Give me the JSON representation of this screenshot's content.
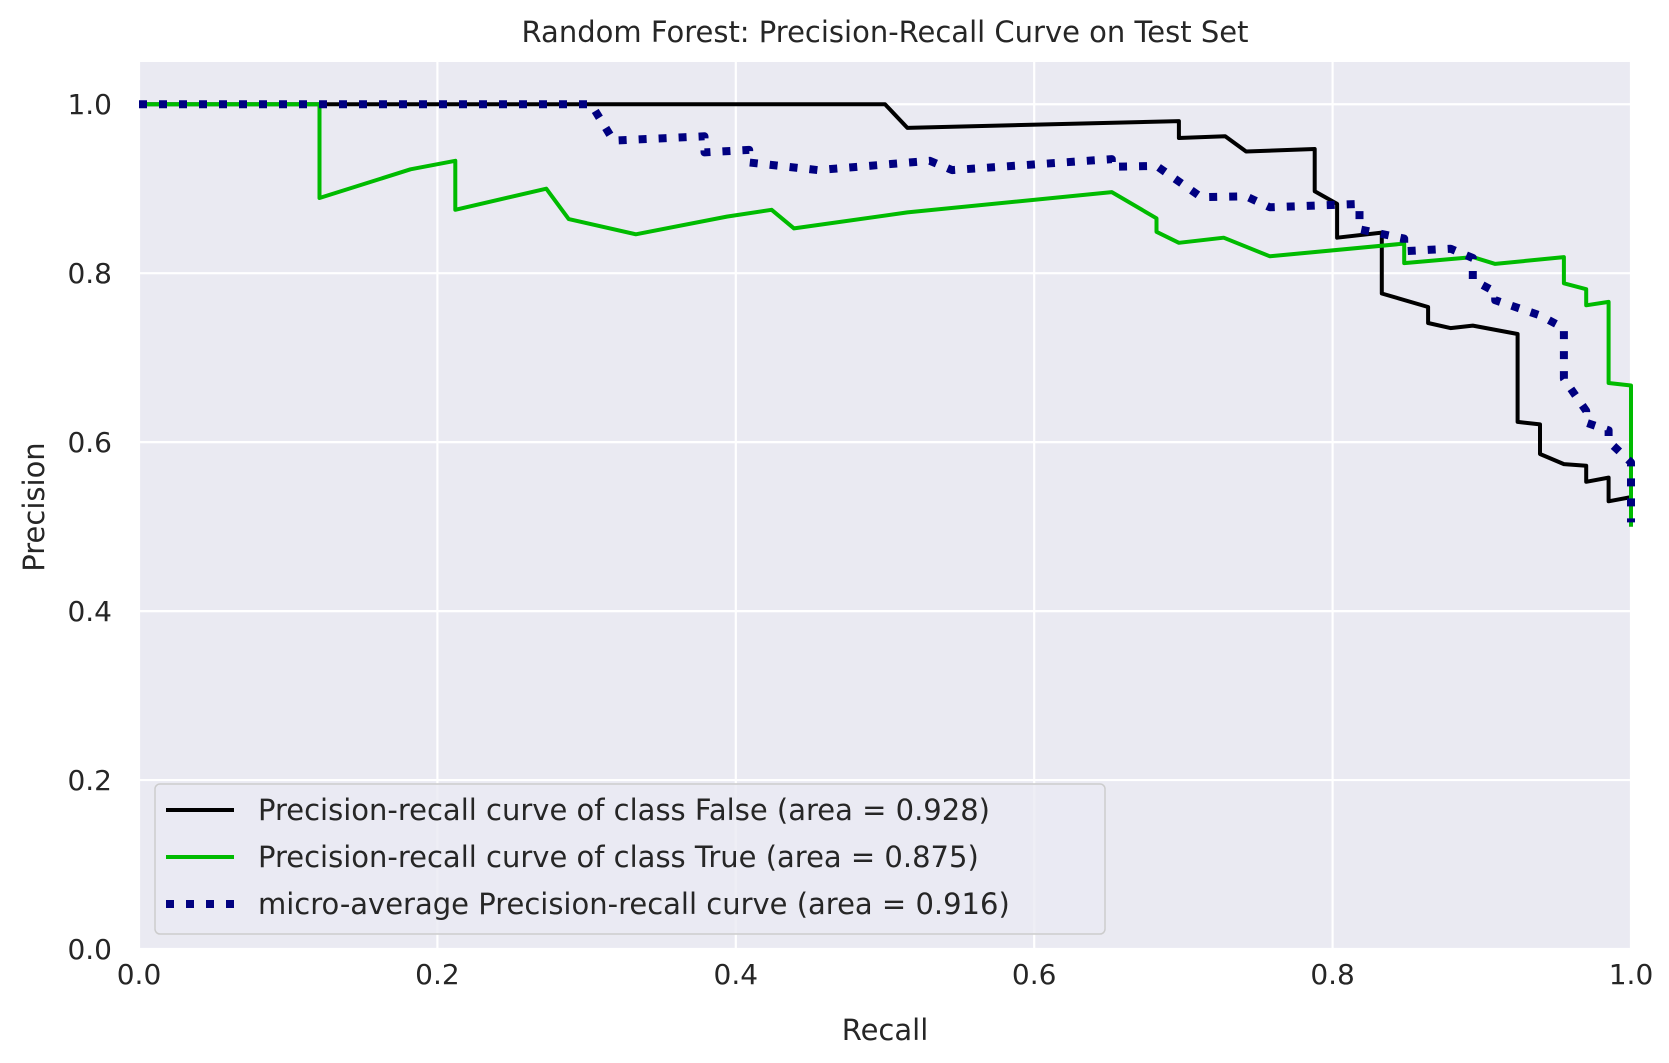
{
  "chart_data": {
    "type": "line",
    "title": "Random Forest: Precision-Recall Curve on Test Set",
    "xlabel": "Recall",
    "ylabel": "Precision",
    "xlim": [
      0.0,
      1.0
    ],
    "ylim": [
      0.0,
      1.05
    ],
    "xticks": [
      "0.0",
      "0.2",
      "0.4",
      "0.6",
      "0.8",
      "1.0"
    ],
    "yticks": [
      "0.0",
      "0.2",
      "0.4",
      "0.6",
      "0.8",
      "1.0"
    ],
    "grid": true,
    "legend_position": "lower-left",
    "colors": {
      "plot_background": "#eaeaf2",
      "grid": "#ffffff"
    },
    "series": [
      {
        "name": "Precision-recall curve of class False (area = 0.928)",
        "color": "#000000",
        "style": "solid",
        "points": [
          [
            0.0,
            1.0
          ],
          [
            0.5,
            1.0
          ],
          [
            0.515,
            0.972
          ],
          [
            0.697,
            0.98
          ],
          [
            0.697,
            0.96
          ],
          [
            0.728,
            0.962
          ],
          [
            0.742,
            0.944
          ],
          [
            0.788,
            0.947
          ],
          [
            0.788,
            0.897
          ],
          [
            0.803,
            0.882
          ],
          [
            0.803,
            0.842
          ],
          [
            0.833,
            0.848
          ],
          [
            0.833,
            0.776
          ],
          [
            0.864,
            0.76
          ],
          [
            0.864,
            0.741
          ],
          [
            0.879,
            0.735
          ],
          [
            0.894,
            0.738
          ],
          [
            0.924,
            0.728
          ],
          [
            0.924,
            0.624
          ],
          [
            0.939,
            0.621
          ],
          [
            0.939,
            0.586
          ],
          [
            0.955,
            0.574
          ],
          [
            0.97,
            0.572
          ],
          [
            0.97,
            0.553
          ],
          [
            0.985,
            0.558
          ],
          [
            0.985,
            0.53
          ],
          [
            1.0,
            0.535
          ],
          [
            1.0,
            0.5
          ]
        ]
      },
      {
        "name": "Precision-recall curve of class True (area = 0.875)",
        "color": "#00bb00",
        "style": "solid",
        "points": [
          [
            0.0,
            1.0
          ],
          [
            0.121,
            1.0
          ],
          [
            0.121,
            0.889
          ],
          [
            0.182,
            0.923
          ],
          [
            0.212,
            0.933
          ],
          [
            0.212,
            0.875
          ],
          [
            0.273,
            0.9
          ],
          [
            0.288,
            0.864
          ],
          [
            0.333,
            0.846
          ],
          [
            0.394,
            0.867
          ],
          [
            0.424,
            0.875
          ],
          [
            0.439,
            0.853
          ],
          [
            0.515,
            0.872
          ],
          [
            0.652,
            0.896
          ],
          [
            0.682,
            0.865
          ],
          [
            0.682,
            0.849
          ],
          [
            0.697,
            0.836
          ],
          [
            0.727,
            0.842
          ],
          [
            0.758,
            0.82
          ],
          [
            0.848,
            0.835
          ],
          [
            0.848,
            0.812
          ],
          [
            0.894,
            0.819
          ],
          [
            0.909,
            0.811
          ],
          [
            0.955,
            0.819
          ],
          [
            0.955,
            0.788
          ],
          [
            0.97,
            0.781
          ],
          [
            0.97,
            0.762
          ],
          [
            0.985,
            0.766
          ],
          [
            0.985,
            0.67
          ],
          [
            1.0,
            0.667
          ],
          [
            1.0,
            0.5
          ]
        ]
      },
      {
        "name": "micro-average Precision-recall curve (area = 0.916)",
        "color": "#000080",
        "style": "dotted",
        "points": [
          [
            0.0,
            1.0
          ],
          [
            0.303,
            1.0
          ],
          [
            0.318,
            0.957
          ],
          [
            0.379,
            0.962
          ],
          [
            0.379,
            0.943
          ],
          [
            0.409,
            0.946
          ],
          [
            0.409,
            0.931
          ],
          [
            0.455,
            0.922
          ],
          [
            0.53,
            0.933
          ],
          [
            0.545,
            0.922
          ],
          [
            0.652,
            0.935
          ],
          [
            0.652,
            0.926
          ],
          [
            0.682,
            0.927
          ],
          [
            0.712,
            0.89
          ],
          [
            0.742,
            0.891
          ],
          [
            0.758,
            0.878
          ],
          [
            0.818,
            0.882
          ],
          [
            0.818,
            0.852
          ],
          [
            0.848,
            0.841
          ],
          [
            0.848,
            0.826
          ],
          [
            0.879,
            0.829
          ],
          [
            0.894,
            0.818
          ],
          [
            0.894,
            0.792
          ],
          [
            0.909,
            0.778
          ],
          [
            0.909,
            0.768
          ],
          [
            0.939,
            0.75
          ],
          [
            0.955,
            0.735
          ],
          [
            0.955,
            0.675
          ],
          [
            0.97,
            0.637
          ],
          [
            0.97,
            0.623
          ],
          [
            0.985,
            0.614
          ],
          [
            0.985,
            0.601
          ],
          [
            1.0,
            0.576
          ],
          [
            1.0,
            0.505
          ]
        ]
      }
    ]
  }
}
